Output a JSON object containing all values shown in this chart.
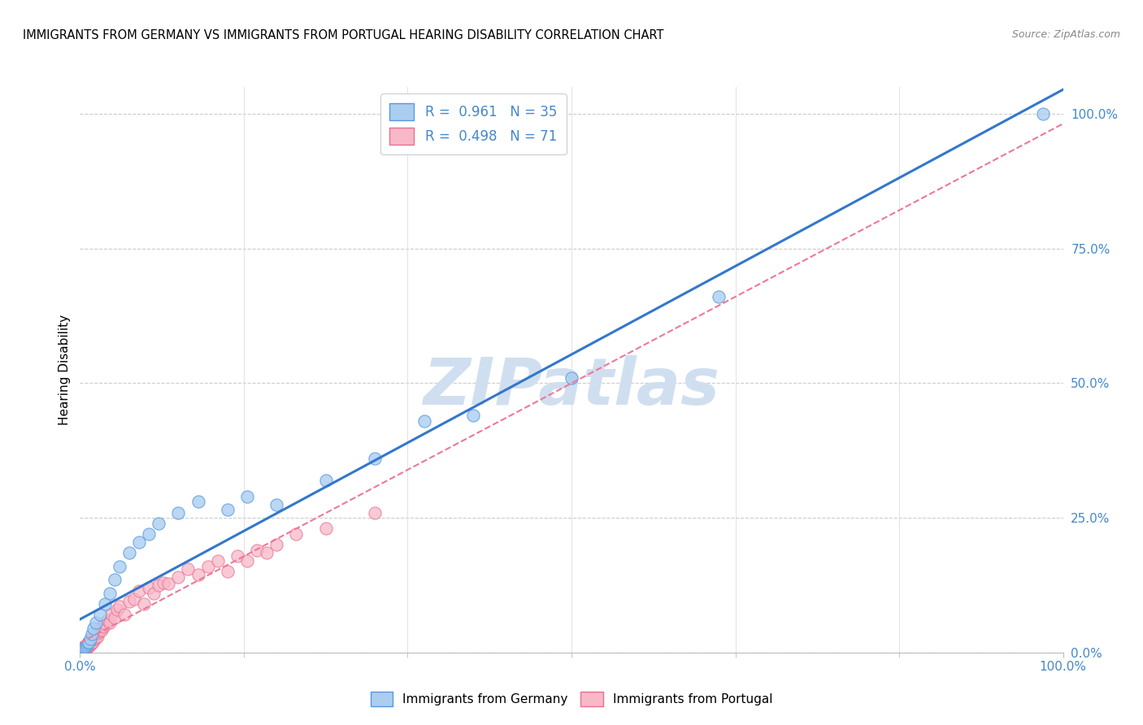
{
  "title": "IMMIGRANTS FROM GERMANY VS IMMIGRANTS FROM PORTUGAL HEARING DISABILITY CORRELATION CHART",
  "source": "Source: ZipAtlas.com",
  "ylabel": "Hearing Disability",
  "xlim": [
    0,
    100
  ],
  "ylim": [
    0,
    105
  ],
  "ytick_labels": [
    "0.0%",
    "25.0%",
    "50.0%",
    "75.0%",
    "100.0%"
  ],
  "ytick_values": [
    0,
    25,
    50,
    75,
    100
  ],
  "xtick_labels": [
    "0.0%",
    "100.0%"
  ],
  "xtick_values": [
    0,
    100
  ],
  "germany_R": 0.961,
  "germany_N": 35,
  "portugal_R": 0.498,
  "portugal_N": 71,
  "germany_color": "#aacdf0",
  "portugal_color": "#f8b8c8",
  "germany_edge_color": "#5599dd",
  "portugal_edge_color": "#e87090",
  "germany_line_color": "#3377cc",
  "portugal_line_color": "#ee7799",
  "watermark": "ZIPatlas",
  "watermark_color": "#d0dff0",
  "legend_label_germany": "Immigrants from Germany",
  "legend_label_portugal": "Immigrants from Portugal",
  "germany_scatter_x": [
    0.1,
    0.2,
    0.3,
    0.4,
    0.5,
    0.5,
    0.6,
    0.7,
    0.8,
    0.9,
    1.0,
    1.2,
    1.4,
    1.6,
    2.0,
    2.5,
    3.0,
    3.5,
    4.0,
    5.0,
    6.0,
    7.0,
    8.0,
    10.0,
    12.0,
    15.0,
    17.0,
    20.0,
    25.0,
    30.0,
    35.0,
    40.0,
    50.0,
    65.0,
    98.0
  ],
  "germany_scatter_y": [
    0.2,
    0.3,
    0.5,
    0.6,
    0.8,
    1.0,
    1.2,
    1.5,
    1.8,
    2.0,
    2.5,
    3.5,
    4.5,
    5.5,
    7.0,
    9.0,
    11.0,
    13.5,
    16.0,
    18.5,
    20.5,
    22.0,
    24.0,
    26.0,
    28.0,
    26.5,
    29.0,
    27.5,
    32.0,
    36.0,
    43.0,
    44.0,
    51.0,
    66.0,
    100.0
  ],
  "portugal_scatter_x": [
    0.05,
    0.1,
    0.15,
    0.2,
    0.25,
    0.3,
    0.35,
    0.4,
    0.45,
    0.5,
    0.5,
    0.6,
    0.65,
    0.7,
    0.75,
    0.8,
    0.85,
    0.9,
    0.95,
    1.0,
    1.05,
    1.1,
    1.15,
    1.2,
    1.25,
    1.3,
    1.35,
    1.4,
    1.5,
    1.55,
    1.6,
    1.7,
    1.8,
    1.9,
    2.0,
    2.1,
    2.2,
    2.3,
    2.4,
    2.5,
    2.6,
    2.8,
    3.0,
    3.2,
    3.5,
    3.8,
    4.0,
    4.5,
    5.0,
    5.5,
    6.0,
    6.5,
    7.0,
    7.5,
    8.0,
    8.5,
    9.0,
    10.0,
    11.0,
    12.0,
    13.0,
    14.0,
    15.0,
    16.0,
    17.0,
    18.0,
    19.0,
    20.0,
    22.0,
    25.0,
    30.0
  ],
  "portugal_scatter_y": [
    0.1,
    0.15,
    0.2,
    0.3,
    0.4,
    0.5,
    0.3,
    0.6,
    0.4,
    0.7,
    1.0,
    0.8,
    1.2,
    0.9,
    1.4,
    1.0,
    1.6,
    1.2,
    1.8,
    1.5,
    2.0,
    1.7,
    2.2,
    1.8,
    2.4,
    2.0,
    2.5,
    2.8,
    2.5,
    3.0,
    2.8,
    3.5,
    3.0,
    3.8,
    4.0,
    4.5,
    4.2,
    5.0,
    4.8,
    5.5,
    5.2,
    6.0,
    5.5,
    7.0,
    6.5,
    8.0,
    8.5,
    7.0,
    9.5,
    10.0,
    11.5,
    9.0,
    12.0,
    11.0,
    12.5,
    13.0,
    12.8,
    14.0,
    15.5,
    14.5,
    16.0,
    17.0,
    15.0,
    18.0,
    17.0,
    19.0,
    18.5,
    20.0,
    22.0,
    23.0,
    26.0
  ]
}
